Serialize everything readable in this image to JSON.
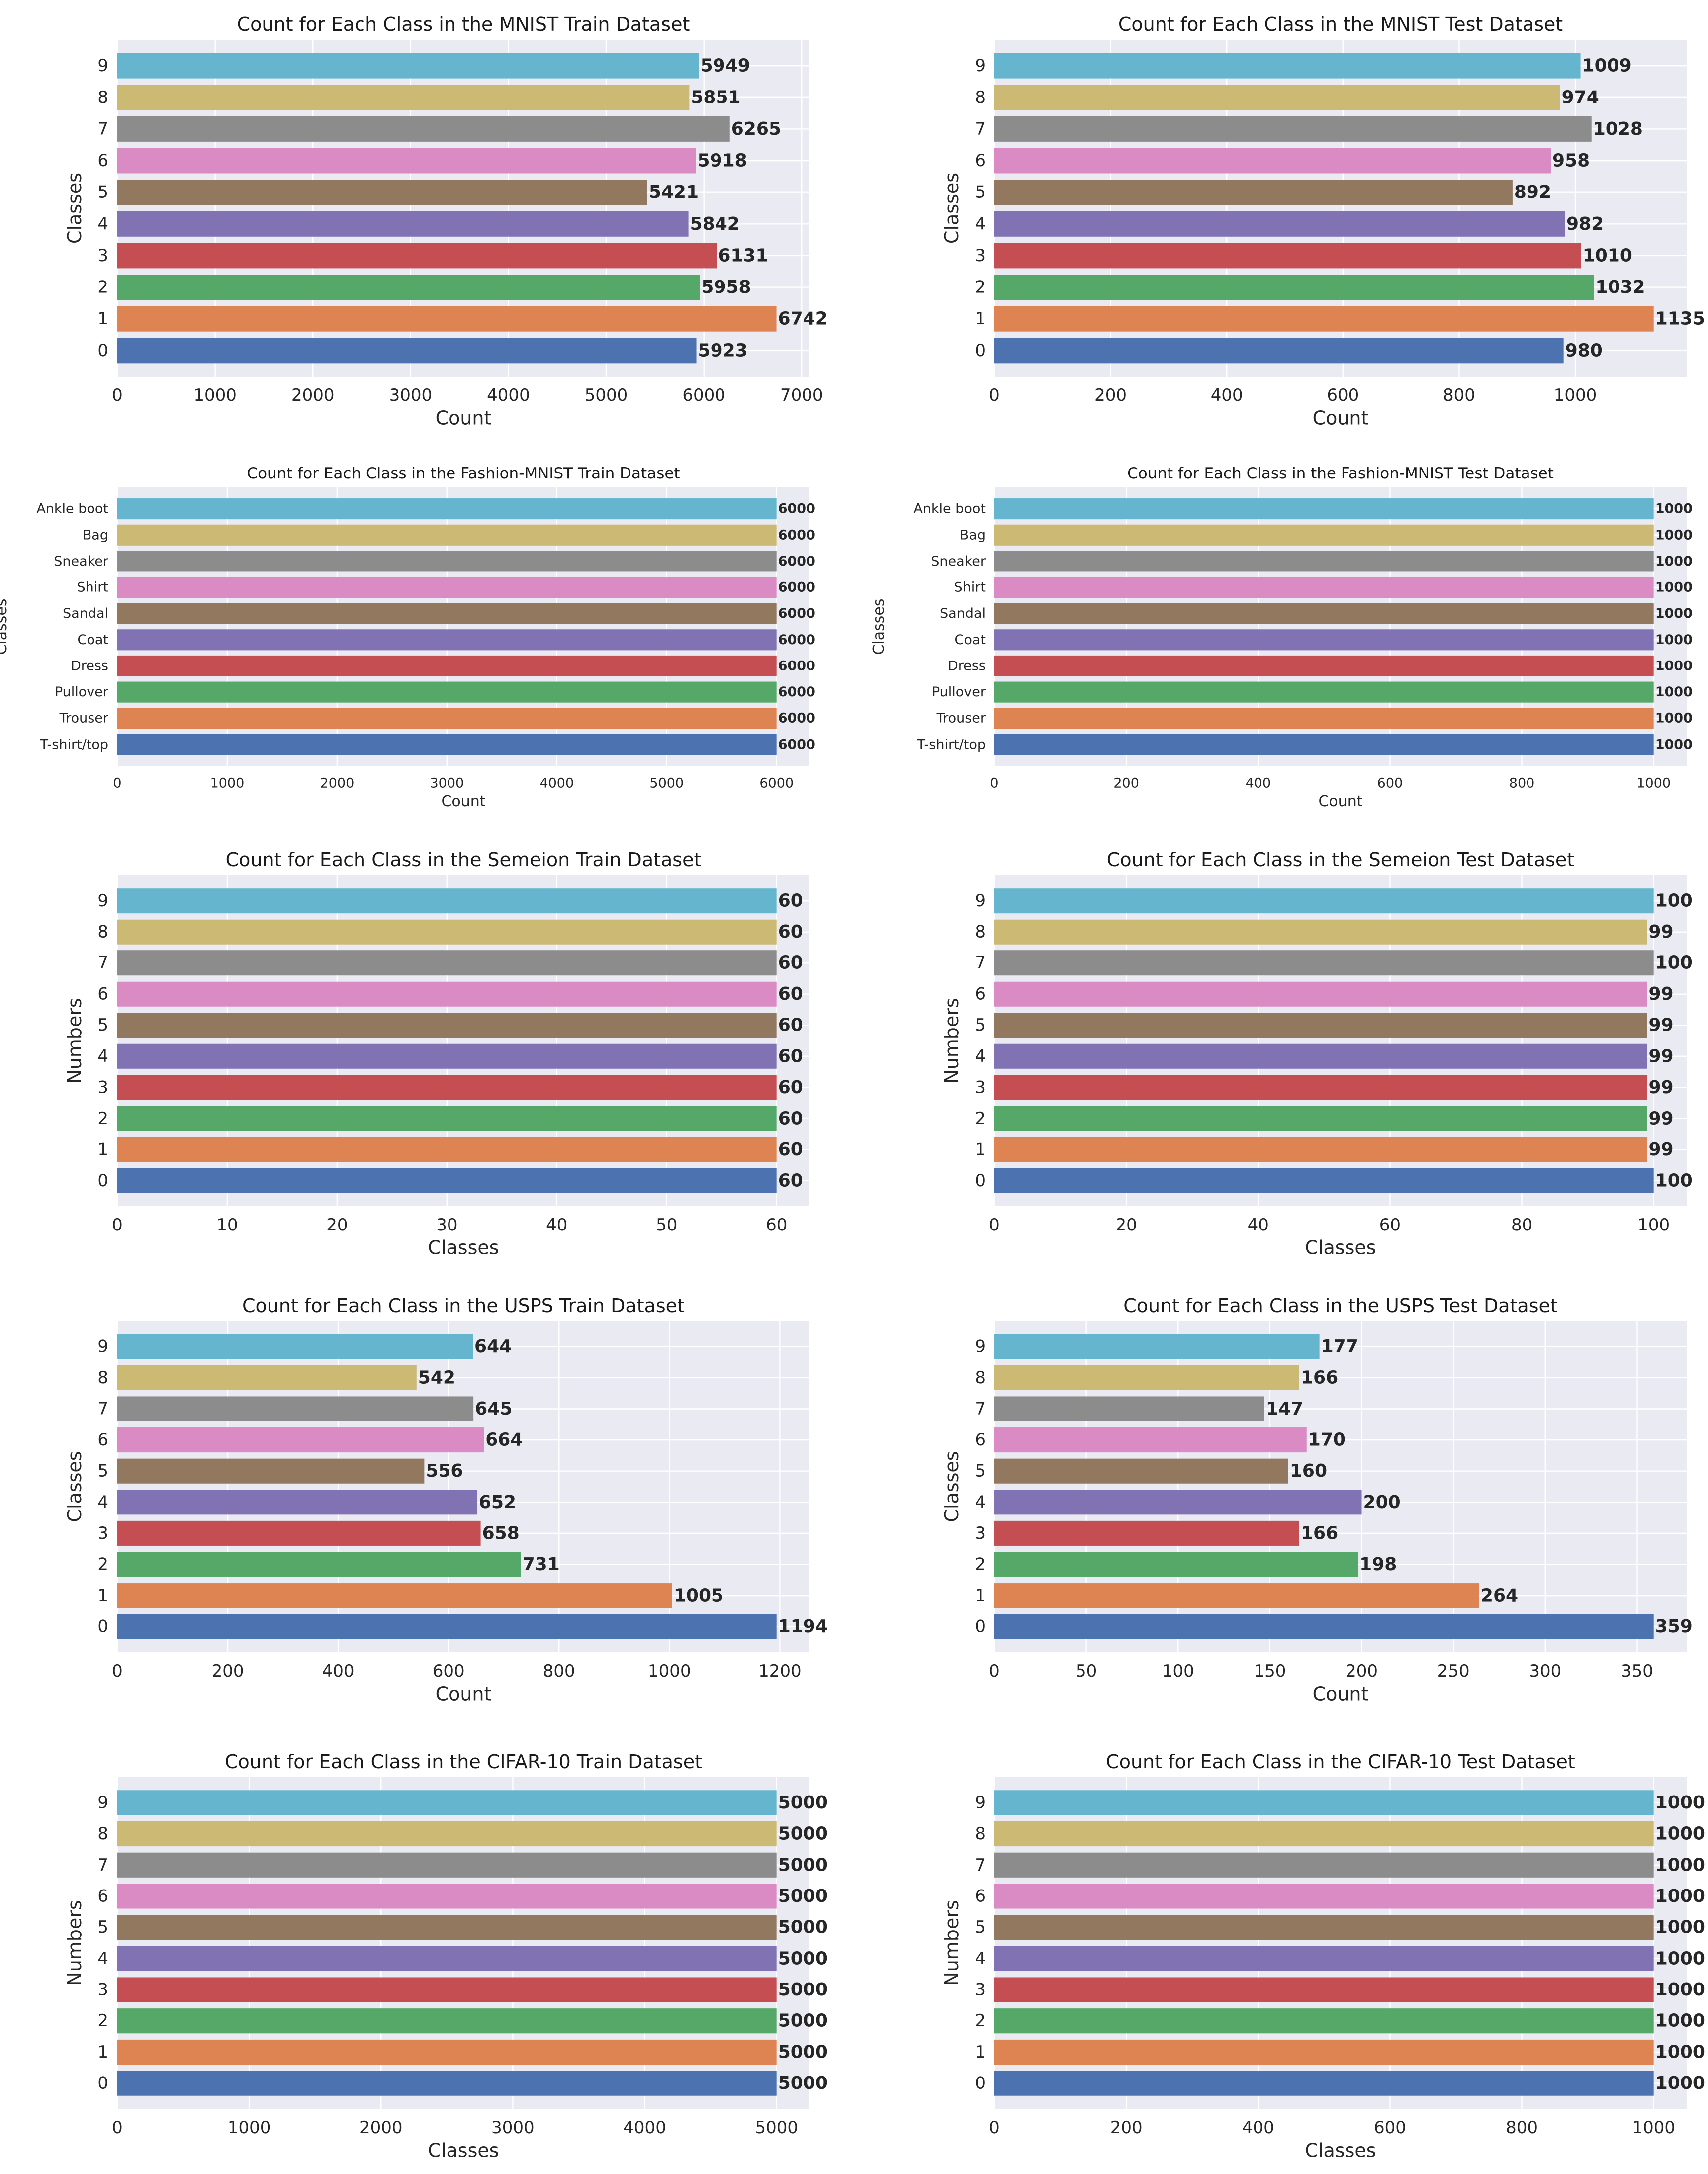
{
  "palette": [
    "#4c72b0",
    "#dd8452",
    "#55a868",
    "#c44e52",
    "#8172b3",
    "#937860",
    "#da8bc3",
    "#8c8c8c",
    "#ccb974",
    "#64b5cd"
  ],
  "chart_data": [
    {
      "type": "bar",
      "orientation": "horizontal",
      "title": "Count for Each Class in the MNIST Train Dataset",
      "xlabel": "Count",
      "ylabel": "Classes",
      "categories": [
        "0",
        "1",
        "2",
        "3",
        "4",
        "5",
        "6",
        "7",
        "8",
        "9"
      ],
      "values": [
        5923,
        6742,
        5958,
        6131,
        5842,
        5421,
        5918,
        6265,
        5851,
        5949
      ],
      "value_labels": [
        "5923",
        "6742",
        "5958",
        "6131",
        "5842",
        "5421",
        "5918",
        "6265",
        "5851",
        "5949"
      ],
      "xlim": [
        0,
        7080
      ],
      "xticks": [
        0,
        1000,
        2000,
        3000,
        4000,
        5000,
        6000,
        7000
      ],
      "xtick_labels": [
        "0",
        "1000",
        "2000",
        "3000",
        "4000",
        "5000",
        "6000",
        "7000"
      ]
    },
    {
      "type": "bar",
      "orientation": "horizontal",
      "title": "Count for Each Class in the MNIST Test Dataset",
      "xlabel": "Count",
      "ylabel": "Classes",
      "categories": [
        "0",
        "1",
        "2",
        "3",
        "4",
        "5",
        "6",
        "7",
        "8",
        "9"
      ],
      "values": [
        980,
        1135,
        1032,
        1010,
        982,
        892,
        958,
        1028,
        974,
        1009
      ],
      "value_labels": [
        "980",
        "1135",
        "1032",
        "1010",
        "982",
        "892",
        "958",
        "1028",
        "974",
        "1009"
      ],
      "xlim": [
        0,
        1191.75
      ],
      "xticks": [
        0,
        200,
        400,
        600,
        800,
        1000
      ],
      "xtick_labels": [
        "0",
        "200",
        "400",
        "600",
        "800",
        "1000"
      ]
    },
    {
      "type": "bar",
      "orientation": "horizontal",
      "small": true,
      "title": "Count for Each Class in the Fashion-MNIST Train Dataset",
      "xlabel": "Count",
      "ylabel": "Classes",
      "categories": [
        "T-shirt/top",
        "Trouser",
        "Pullover",
        "Dress",
        "Coat",
        "Sandal",
        "Shirt",
        "Sneaker",
        "Bag",
        "Ankle boot"
      ],
      "values": [
        6000,
        6000,
        6000,
        6000,
        6000,
        6000,
        6000,
        6000,
        6000,
        6000
      ],
      "value_labels": [
        "6000",
        "6000",
        "6000",
        "6000",
        "6000",
        "6000",
        "6000",
        "6000",
        "6000",
        "6000"
      ],
      "xlim": [
        0,
        6300
      ],
      "xticks": [
        0,
        1000,
        2000,
        3000,
        4000,
        5000,
        6000
      ],
      "xtick_labels": [
        "0",
        "1000",
        "2000",
        "3000",
        "4000",
        "5000",
        "6000"
      ]
    },
    {
      "type": "bar",
      "orientation": "horizontal",
      "small": true,
      "title": "Count for Each Class in the Fashion-MNIST Test Dataset",
      "xlabel": "Count",
      "ylabel": "Classes",
      "categories": [
        "T-shirt/top",
        "Trouser",
        "Pullover",
        "Dress",
        "Coat",
        "Sandal",
        "Shirt",
        "Sneaker",
        "Bag",
        "Ankle boot"
      ],
      "values": [
        1000,
        1000,
        1000,
        1000,
        1000,
        1000,
        1000,
        1000,
        1000,
        1000
      ],
      "value_labels": [
        "1000",
        "1000",
        "1000",
        "1000",
        "1000",
        "1000",
        "1000",
        "1000",
        "1000",
        "1000"
      ],
      "xlim": [
        0,
        1050
      ],
      "xticks": [
        0,
        200,
        400,
        600,
        800,
        1000
      ],
      "xtick_labels": [
        "0",
        "200",
        "400",
        "600",
        "800",
        "1000"
      ]
    },
    {
      "type": "bar",
      "orientation": "horizontal",
      "title": "Count for Each Class in the Semeion Train Dataset",
      "xlabel": "Classes",
      "ylabel": "Numbers",
      "categories": [
        "0",
        "1",
        "2",
        "3",
        "4",
        "5",
        "6",
        "7",
        "8",
        "9"
      ],
      "values": [
        60,
        60,
        60,
        60,
        60,
        60,
        60,
        60,
        60,
        60
      ],
      "value_labels": [
        "60",
        "60",
        "60",
        "60",
        "60",
        "60",
        "60",
        "60",
        "60",
        "60"
      ],
      "xlim": [
        0,
        63
      ],
      "xticks": [
        0,
        10,
        20,
        30,
        40,
        50,
        60
      ],
      "xtick_labels": [
        "0",
        "10",
        "20",
        "30",
        "40",
        "50",
        "60"
      ]
    },
    {
      "type": "bar",
      "orientation": "horizontal",
      "title": "Count for Each Class in the Semeion Test Dataset",
      "xlabel": "Classes",
      "ylabel": "Numbers",
      "categories": [
        "0",
        "1",
        "2",
        "3",
        "4",
        "5",
        "6",
        "7",
        "8",
        "9"
      ],
      "values": [
        100,
        99,
        99,
        99,
        99,
        99,
        99,
        100,
        99,
        100
      ],
      "value_labels": [
        "100",
        "99",
        "99",
        "99",
        "99",
        "99",
        "99",
        "100",
        "99",
        "100"
      ],
      "xlim": [
        0,
        105
      ],
      "xticks": [
        0,
        20,
        40,
        60,
        80,
        100
      ],
      "xtick_labels": [
        "0",
        "20",
        "40",
        "60",
        "80",
        "100"
      ]
    },
    {
      "type": "bar",
      "orientation": "horizontal",
      "title": "Count for Each Class in the USPS Train Dataset",
      "xlabel": "Count",
      "ylabel": "Classes",
      "categories": [
        "0",
        "1",
        "2",
        "3",
        "4",
        "5",
        "6",
        "7",
        "8",
        "9"
      ],
      "values": [
        1194,
        1005,
        731,
        658,
        652,
        556,
        664,
        645,
        542,
        644
      ],
      "value_labels": [
        "1194",
        "1005",
        "731",
        "658",
        "652",
        "556",
        "664",
        "645",
        "542",
        "644"
      ],
      "xlim": [
        0,
        1253.7
      ],
      "xticks": [
        0,
        200,
        400,
        600,
        800,
        1000,
        1200
      ],
      "xtick_labels": [
        "0",
        "200",
        "400",
        "600",
        "800",
        "1000",
        "1200"
      ]
    },
    {
      "type": "bar",
      "orientation": "horizontal",
      "title": "Count for Each Class in the USPS Test Dataset",
      "xlabel": "Count",
      "ylabel": "Classes",
      "categories": [
        "0",
        "1",
        "2",
        "3",
        "4",
        "5",
        "6",
        "7",
        "8",
        "9"
      ],
      "values": [
        359,
        264,
        198,
        166,
        200,
        160,
        170,
        147,
        166,
        177
      ],
      "value_labels": [
        "359",
        "264",
        "198",
        "166",
        "200",
        "160",
        "170",
        "147",
        "166",
        "177"
      ],
      "xlim": [
        0,
        376.95
      ],
      "xticks": [
        0,
        50,
        100,
        150,
        200,
        250,
        300,
        350
      ],
      "xtick_labels": [
        "0",
        "50",
        "100",
        "150",
        "200",
        "250",
        "300",
        "350"
      ]
    },
    {
      "type": "bar",
      "orientation": "horizontal",
      "title": "Count for Each Class in the CIFAR-10 Train Dataset",
      "xlabel": "Classes",
      "ylabel": "Numbers",
      "categories": [
        "0",
        "1",
        "2",
        "3",
        "4",
        "5",
        "6",
        "7",
        "8",
        "9"
      ],
      "values": [
        5000,
        5000,
        5000,
        5000,
        5000,
        5000,
        5000,
        5000,
        5000,
        5000
      ],
      "value_labels": [
        "5000",
        "5000",
        "5000",
        "5000",
        "5000",
        "5000",
        "5000",
        "5000",
        "5000",
        "5000"
      ],
      "xlim": [
        0,
        5250
      ],
      "xticks": [
        0,
        1000,
        2000,
        3000,
        4000,
        5000
      ],
      "xtick_labels": [
        "0",
        "1000",
        "2000",
        "3000",
        "4000",
        "5000"
      ]
    },
    {
      "type": "bar",
      "orientation": "horizontal",
      "title": "Count for Each Class in the CIFAR-10 Test Dataset",
      "xlabel": "Classes",
      "ylabel": "Numbers",
      "categories": [
        "0",
        "1",
        "2",
        "3",
        "4",
        "5",
        "6",
        "7",
        "8",
        "9"
      ],
      "values": [
        1000,
        1000,
        1000,
        1000,
        1000,
        1000,
        1000,
        1000,
        1000,
        1000
      ],
      "value_labels": [
        "1000",
        "1000",
        "1000",
        "1000",
        "1000",
        "1000",
        "1000",
        "1000",
        "1000",
        "1000"
      ],
      "xlim": [
        0,
        1050
      ],
      "xticks": [
        0,
        200,
        400,
        600,
        800,
        1000
      ],
      "xtick_labels": [
        "0",
        "200",
        "400",
        "600",
        "800",
        "1000"
      ]
    }
  ]
}
